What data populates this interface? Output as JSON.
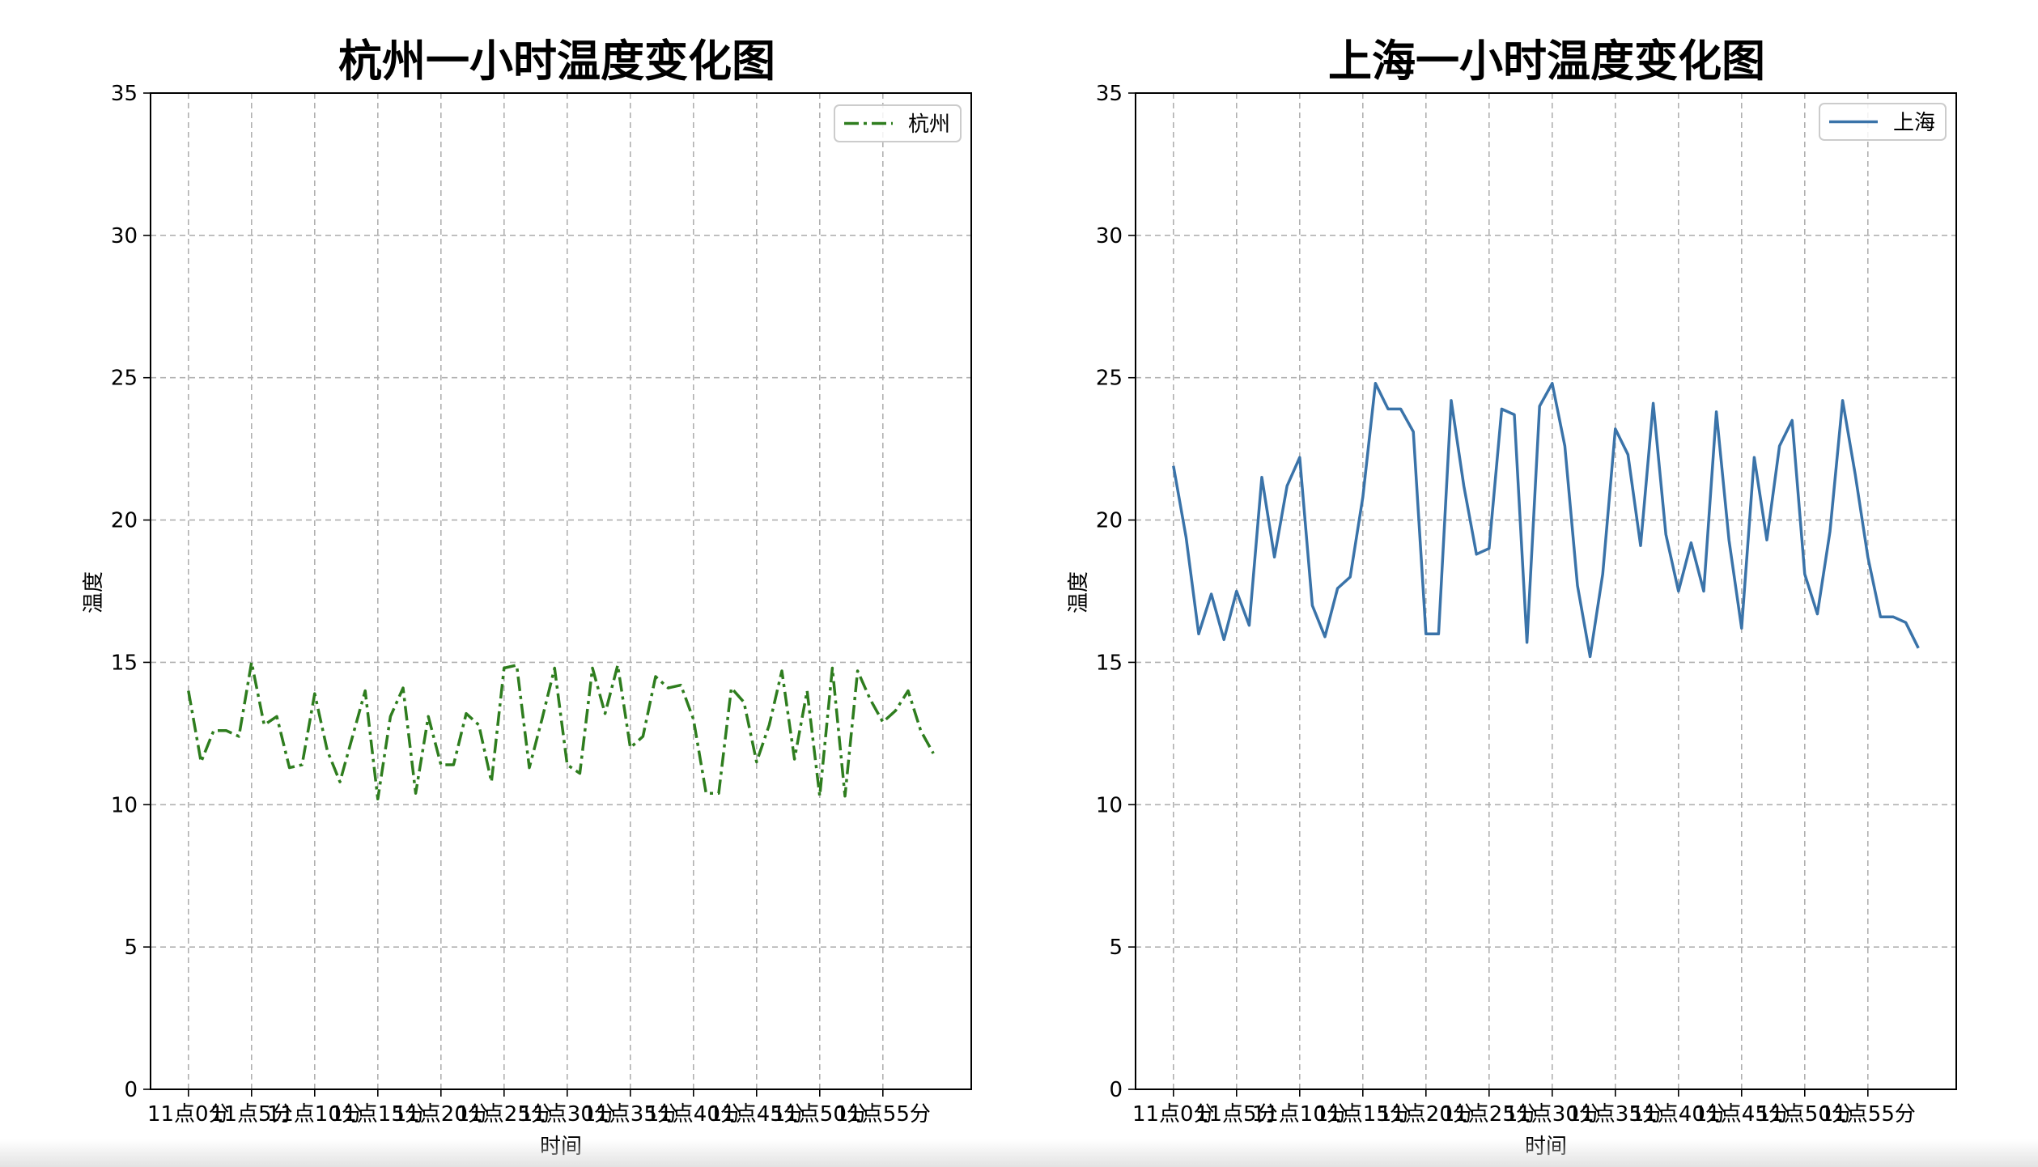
{
  "figure": {
    "background": "#ffffff"
  },
  "chart_data": [
    {
      "type": "line",
      "title": "杭州一小时温度变化图",
      "xlabel": "时间",
      "ylabel": "温度",
      "ylim": [
        0,
        35
      ],
      "yticks": [
        0,
        5,
        10,
        15,
        20,
        25,
        30,
        35
      ],
      "xlim": [
        -3,
        62
      ],
      "xticks": [
        0,
        5,
        10,
        15,
        20,
        25,
        30,
        35,
        40,
        45,
        50,
        55
      ],
      "xtick_labels": [
        "11点0分",
        "11点5分",
        "11点10分",
        "11点15分",
        "11点20分",
        "11点25分",
        "11点30分",
        "11点35分",
        "11点40分",
        "11点45分",
        "11点50分",
        "11点55分"
      ],
      "grid": true,
      "legend_position": "top-right",
      "x": [
        0,
        1,
        2,
        3,
        4,
        5,
        6,
        7,
        8,
        9,
        10,
        11,
        12,
        13,
        14,
        15,
        16,
        17,
        18,
        19,
        20,
        21,
        22,
        23,
        24,
        25,
        26,
        27,
        28,
        29,
        30,
        31,
        32,
        33,
        34,
        35,
        36,
        37,
        38,
        39,
        40,
        41,
        42,
        43,
        44,
        45,
        46,
        47,
        48,
        49,
        50,
        51,
        52,
        53,
        54,
        55,
        56,
        57,
        58,
        59
      ],
      "series": [
        {
          "name": "杭州",
          "color": "#2e7d1e",
          "linestyle": "dashdot",
          "values": [
            14.0,
            11.5,
            12.6,
            12.6,
            12.4,
            15.0,
            12.8,
            13.1,
            11.3,
            11.4,
            13.9,
            11.9,
            10.8,
            12.4,
            14.0,
            10.2,
            13.1,
            14.1,
            10.4,
            13.1,
            11.4,
            11.4,
            13.2,
            12.8,
            10.8,
            14.8,
            14.9,
            11.3,
            13.0,
            14.8,
            11.4,
            11.1,
            14.8,
            13.2,
            14.9,
            12.0,
            12.4,
            14.5,
            14.1,
            14.2,
            13.0,
            10.4,
            10.4,
            14.1,
            13.6,
            11.5,
            12.8,
            14.7,
            11.6,
            14.0,
            10.3,
            14.8,
            10.3,
            14.7,
            13.7,
            12.9,
            13.3,
            14.0,
            12.6,
            11.8
          ]
        }
      ]
    },
    {
      "type": "line",
      "title": "上海一小时温度变化图",
      "xlabel": "时间",
      "ylabel": "温度",
      "ylim": [
        0,
        35
      ],
      "yticks": [
        0,
        5,
        10,
        15,
        20,
        25,
        30,
        35
      ],
      "xlim": [
        -3,
        62
      ],
      "xticks": [
        0,
        5,
        10,
        15,
        20,
        25,
        30,
        35,
        40,
        45,
        50,
        55
      ],
      "xtick_labels": [
        "11点0分",
        "11点5分",
        "11点10分",
        "11点15分",
        "11点20分",
        "11点25分",
        "11点30分",
        "11点35分",
        "11点40分",
        "11点45分",
        "11点50分",
        "11点55分"
      ],
      "grid": true,
      "legend_position": "top-right",
      "x": [
        0,
        1,
        2,
        3,
        4,
        5,
        6,
        7,
        8,
        9,
        10,
        11,
        12,
        13,
        14,
        15,
        16,
        17,
        18,
        19,
        20,
        21,
        22,
        23,
        24,
        25,
        26,
        27,
        28,
        29,
        30,
        31,
        32,
        33,
        34,
        35,
        36,
        37,
        38,
        39,
        40,
        41,
        42,
        43,
        44,
        45,
        46,
        47,
        48,
        49,
        50,
        51,
        52,
        53,
        54,
        55,
        56,
        57,
        58,
        59
      ],
      "series": [
        {
          "name": "上海",
          "color": "#3a73a9",
          "linestyle": "solid",
          "values": [
            21.9,
            19.4,
            16.0,
            17.4,
            15.8,
            17.5,
            16.3,
            21.5,
            18.7,
            21.2,
            22.2,
            17.0,
            15.9,
            17.6,
            18.0,
            20.8,
            24.8,
            23.9,
            23.9,
            23.1,
            16.0,
            16.0,
            24.2,
            21.2,
            18.8,
            19.0,
            23.9,
            23.7,
            15.7,
            24.0,
            24.8,
            22.6,
            17.7,
            15.2,
            18.1,
            23.2,
            22.3,
            19.1,
            24.1,
            19.5,
            17.5,
            19.2,
            17.5,
            23.8,
            19.3,
            16.2,
            22.2,
            19.3,
            22.6,
            23.5,
            18.1,
            16.7,
            19.6,
            24.2,
            21.6,
            18.7,
            16.6,
            16.6,
            16.4,
            15.5
          ]
        }
      ]
    }
  ]
}
